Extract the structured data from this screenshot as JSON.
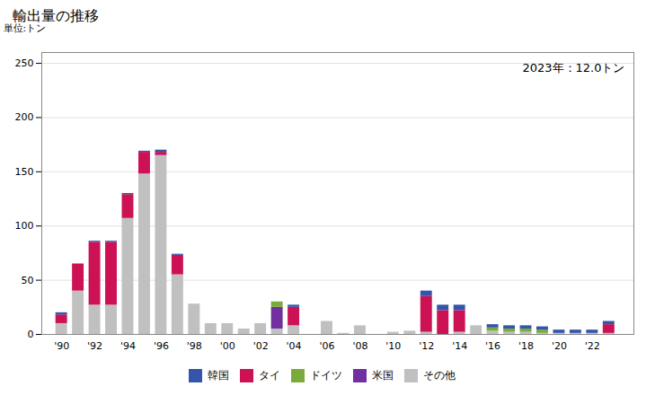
{
  "chart_data": {
    "type": "bar",
    "stacked": true,
    "title": "輸出量の推移",
    "ylabel": "単位:トン",
    "annotation": "2023年：12.0トン",
    "x": [
      1990,
      1991,
      1992,
      1993,
      1994,
      1995,
      1996,
      1997,
      1998,
      1999,
      2000,
      2001,
      2002,
      2003,
      2004,
      2005,
      2006,
      2007,
      2008,
      2009,
      2010,
      2011,
      2012,
      2013,
      2014,
      2015,
      2016,
      2017,
      2018,
      2019,
      2020,
      2021,
      2022,
      2023
    ],
    "series": [
      {
        "name": "韓国",
        "color": "#3355aa",
        "values": [
          2,
          0,
          1,
          1,
          1,
          1,
          2,
          1,
          0,
          0,
          0,
          0,
          0,
          0,
          2,
          0,
          0,
          0,
          0,
          0,
          0,
          0,
          5,
          5,
          5,
          0,
          3,
          3,
          3,
          3,
          3,
          3,
          3,
          3
        ]
      },
      {
        "name": "タイ",
        "color": "#cc1155",
        "values": [
          8,
          25,
          58,
          58,
          22,
          20,
          3,
          18,
          0,
          0,
          0,
          0,
          0,
          0,
          17,
          0,
          0,
          0,
          0,
          0,
          0,
          0,
          33,
          22,
          20,
          0,
          0,
          0,
          0,
          0,
          0,
          0,
          0,
          8
        ]
      },
      {
        "name": "ドイツ",
        "color": "#7aaa3a",
        "values": [
          0,
          0,
          0,
          0,
          0,
          0,
          0,
          0,
          0,
          0,
          0,
          0,
          0,
          5,
          0,
          0,
          0,
          0,
          0,
          0,
          0,
          0,
          0,
          0,
          0,
          0,
          3,
          3,
          3,
          3,
          0,
          0,
          0,
          0
        ]
      },
      {
        "name": "米国",
        "color": "#7030a0",
        "values": [
          0,
          0,
          0,
          0,
          0,
          0,
          0,
          0,
          0,
          0,
          0,
          0,
          0,
          20,
          0,
          0,
          0,
          0,
          0,
          0,
          0,
          0,
          0,
          0,
          0,
          0,
          0,
          0,
          0,
          0,
          0,
          0,
          0,
          0
        ]
      },
      {
        "name": "その他",
        "color": "#c0c0c0",
        "values": [
          10,
          40,
          27,
          27,
          107,
          148,
          165,
          55,
          28,
          10,
          10,
          5,
          10,
          5,
          8,
          0,
          12,
          1,
          8,
          0,
          2,
          3,
          2,
          0,
          2,
          8,
          3,
          2,
          2,
          1,
          1,
          1,
          1,
          1
        ]
      }
    ],
    "xlim": [
      1988.8,
      2024.5
    ],
    "xticks": [
      {
        "value": 1990,
        "label": "'90"
      },
      {
        "value": 1992,
        "label": "'92"
      },
      {
        "value": 1994,
        "label": "'94"
      },
      {
        "value": 1996,
        "label": "'96"
      },
      {
        "value": 1998,
        "label": "'98"
      },
      {
        "value": 2000,
        "label": "'00"
      },
      {
        "value": 2002,
        "label": "'02"
      },
      {
        "value": 2004,
        "label": "'04"
      },
      {
        "value": 2006,
        "label": "'06"
      },
      {
        "value": 2008,
        "label": "'08"
      },
      {
        "value": 2010,
        "label": "'10"
      },
      {
        "value": 2012,
        "label": "'12"
      },
      {
        "value": 2014,
        "label": "'14"
      },
      {
        "value": 2016,
        "label": "'16"
      },
      {
        "value": 2018,
        "label": "'18"
      },
      {
        "value": 2020,
        "label": "'20"
      },
      {
        "value": 2022,
        "label": "'22"
      }
    ],
    "ylim": [
      0,
      260
    ],
    "yticks": [
      0,
      50,
      100,
      150,
      200,
      250
    ],
    "grid": true,
    "legend": "bottom"
  }
}
